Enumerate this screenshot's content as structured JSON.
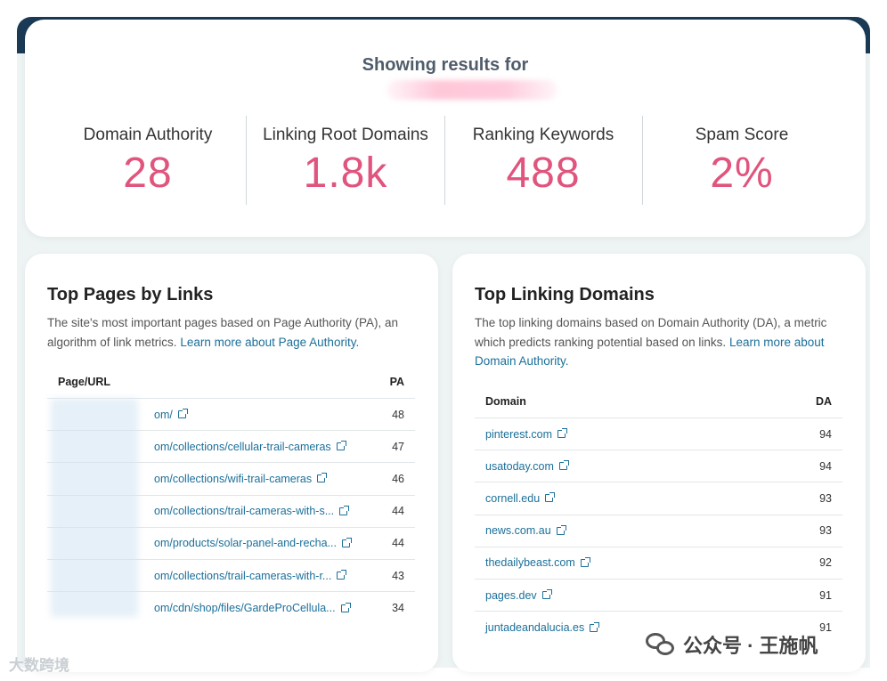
{
  "summary": {
    "title": "Showing results for",
    "metrics": [
      {
        "label": "Domain Authority",
        "value": "28"
      },
      {
        "label": "Linking Root Domains",
        "value": "1.8k"
      },
      {
        "label": "Ranking Keywords",
        "value": "488"
      },
      {
        "label": "Spam Score",
        "value": "2%"
      }
    ]
  },
  "top_pages": {
    "title": "Top Pages by Links",
    "description": "The site's most important pages based on Page Authority (PA), an algorithm of link metrics.",
    "learn_more": "Learn more about Page Authority.",
    "col_url": "Page/URL",
    "col_pa": "PA",
    "rows": [
      {
        "url": "om/",
        "pa": "48"
      },
      {
        "url": "om/collections/cellular-trail-cameras",
        "pa": "47"
      },
      {
        "url": "om/collections/wifi-trail-cameras",
        "pa": "46"
      },
      {
        "url": "om/collections/trail-cameras-with-s...",
        "pa": "44"
      },
      {
        "url": "om/products/solar-panel-and-recha...",
        "pa": "44"
      },
      {
        "url": "om/collections/trail-cameras-with-r...",
        "pa": "43"
      },
      {
        "url": "om/cdn/shop/files/GardeProCellula...",
        "pa": "34"
      }
    ]
  },
  "top_domains": {
    "title": "Top Linking Domains",
    "description": "The top linking domains based on Domain Authority (DA), a metric which predicts ranking potential based on links.",
    "learn_more": "Learn more about Domain Authority.",
    "col_domain": "Domain",
    "col_da": "DA",
    "rows": [
      {
        "domain": "pinterest.com",
        "da": "94"
      },
      {
        "domain": "usatoday.com",
        "da": "94"
      },
      {
        "domain": "cornell.edu",
        "da": "93"
      },
      {
        "domain": "news.com.au",
        "da": "93"
      },
      {
        "domain": "thedailybeast.com",
        "da": "92"
      },
      {
        "domain": "pages.dev",
        "da": "91"
      },
      {
        "domain": "juntadeandalucia.es",
        "da": "91"
      }
    ]
  },
  "watermarks": {
    "left": "大数跨境",
    "right": "公众号 · 王施帆"
  }
}
